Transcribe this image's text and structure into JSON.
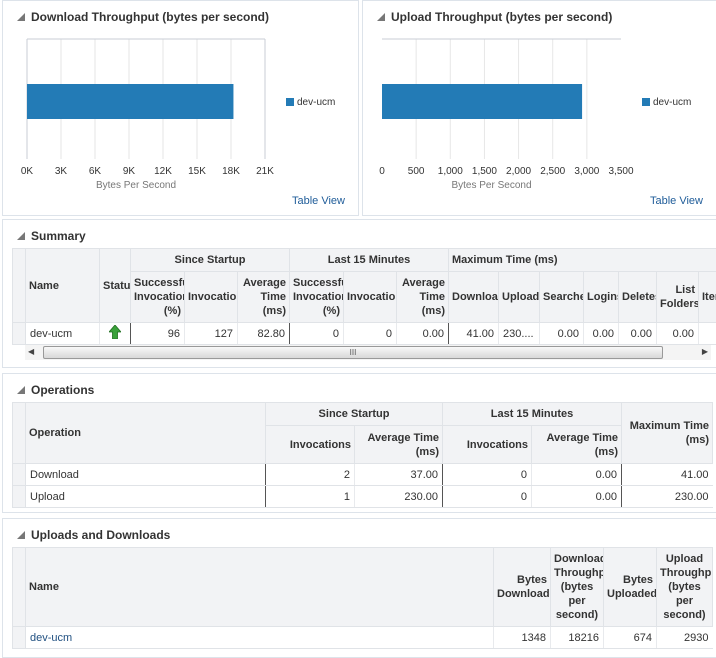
{
  "download_chart": {
    "title": "Download Throughput (bytes per second)",
    "table_view": "Table View",
    "legend": "dev-ucm",
    "chart_data": {
      "type": "bar",
      "orientation": "horizontal",
      "categories": [
        "dev-ucm"
      ],
      "values": [
        18216
      ],
      "xlabel": "Bytes Per Second",
      "xlim": [
        0,
        21000
      ],
      "ticks": [
        "0K",
        "3K",
        "6K",
        "9K",
        "12K",
        "15K",
        "18K",
        "21K"
      ],
      "tick_values": [
        0,
        3000,
        6000,
        9000,
        12000,
        15000,
        18000,
        21000
      ],
      "color": "#237bb6",
      "grid": true,
      "legend": "right"
    }
  },
  "upload_chart": {
    "title": "Upload Throughput (bytes per second)",
    "table_view": "Table View",
    "legend": "dev-ucm",
    "chart_data": {
      "type": "bar",
      "orientation": "horizontal",
      "categories": [
        "dev-ucm"
      ],
      "values": [
        2930
      ],
      "xlabel": "Bytes Per Second",
      "xlim": [
        0,
        3500
      ],
      "ticks": [
        "0",
        "500",
        "1,000",
        "1,500",
        "2,000",
        "2,500",
        "3,000",
        "3,500"
      ],
      "tick_values": [
        0,
        500,
        1000,
        1500,
        2000,
        2500,
        3000,
        3500
      ],
      "color": "#237bb6",
      "grid": true,
      "legend": "right"
    }
  },
  "summary": {
    "title": "Summary",
    "groups": {
      "since": "Since Startup",
      "last15": "Last 15 Minutes",
      "max": "Maximum Time (ms)"
    },
    "headers": {
      "name": "Name",
      "status": "Status",
      "succ": "Successful Invocations (%)",
      "inv": "Invocations",
      "avg": "Average Time (ms)",
      "download": "Downloads",
      "uploads": "Uploads",
      "searches": "Searches",
      "logins": "Logins",
      "deletes": "Deletes",
      "list_folders": "List Folders",
      "items": "Items"
    },
    "row": {
      "name": "dev-ucm",
      "status": "up",
      "succ": "96",
      "inv": "127",
      "avg": "82.80",
      "succ15": "0",
      "inv15": "0",
      "avg15": "0.00",
      "download": "41.00",
      "uploads": "230....",
      "searches": "0.00",
      "logins": "0.00",
      "deletes": "0.00",
      "list_folders": "0.00"
    },
    "scroll_grip": "III"
  },
  "operations": {
    "title": "Operations",
    "headers": {
      "operation": "Operation",
      "since": "Since Startup",
      "last15": "Last 15 Minutes",
      "inv": "Invocations",
      "avg": "Average Time (ms)",
      "max": "Maximum Time (ms)"
    },
    "rows": [
      {
        "op": "Download",
        "inv": "2",
        "avg": "37.00",
        "inv15": "0",
        "avg15": "0.00",
        "max": "41.00"
      },
      {
        "op": "Upload",
        "inv": "1",
        "avg": "230.00",
        "inv15": "0",
        "avg15": "0.00",
        "max": "230.00"
      }
    ]
  },
  "uploads": {
    "title": "Uploads and Downloads",
    "headers": {
      "name": "Name",
      "bytes_down": "Bytes Downloaded",
      "down_tp": "Download Throughput (bytes per second)",
      "bytes_up": "Bytes Uploaded",
      "up_tp": "Upload Throughput (bytes per second)"
    },
    "row": {
      "name": "dev-ucm",
      "bytes_down": "1348",
      "down_tp": "18216",
      "bytes_up": "674",
      "up_tp": "2930"
    }
  }
}
